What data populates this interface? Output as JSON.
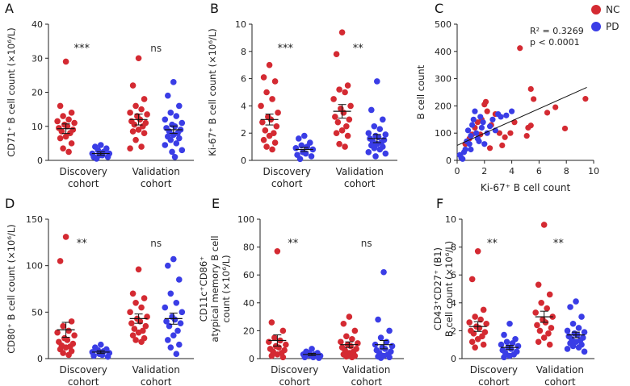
{
  "colors": {
    "nc": "#d42a32",
    "pd": "#3a3de6",
    "axis": "#222222"
  },
  "legend": [
    {
      "key": "nc",
      "label": "NC"
    },
    {
      "key": "pd",
      "label": "PD"
    }
  ],
  "chart_data": [
    {
      "id": "A",
      "letter": "A",
      "type": "scatter",
      "ylabel": "CD71⁺ B cell count (×10⁶/L)",
      "ylim": [
        0,
        40
      ],
      "yticks": [
        "0",
        "10",
        "20",
        "30",
        "40"
      ],
      "groups": [
        "Discovery\ncohort",
        "Validation\ncohort"
      ],
      "significance": [
        "***",
        "ns"
      ],
      "series": [
        {
          "name": "Discovery NC",
          "group": 0,
          "cls": "nc",
          "mean": 9.3,
          "sem": 1.4,
          "values": [
            29,
            16,
            14,
            13,
            12,
            11.5,
            11,
            10.5,
            10,
            9.5,
            9,
            8.5,
            8,
            7,
            6.5,
            5,
            3.5,
            2.5
          ]
        },
        {
          "name": "Discovery PD",
          "group": 0,
          "cls": "pd",
          "mean": 2.0,
          "sem": 0.5,
          "values": [
            4.5,
            4,
            3.5,
            3,
            2.5,
            2,
            2,
            1.5,
            1.5,
            1,
            1,
            0.5
          ]
        },
        {
          "name": "Validation NC",
          "group": 1,
          "cls": "nc",
          "mean": 12,
          "sem": 1.6,
          "values": [
            30,
            22,
            18,
            16,
            15,
            14,
            13.5,
            13,
            12,
            11.5,
            11,
            10.5,
            10,
            9,
            8.5,
            8,
            6,
            4,
            3.5
          ]
        },
        {
          "name": "Validation PD",
          "group": 1,
          "cls": "pd",
          "mean": 9,
          "sem": 1.1,
          "values": [
            23,
            19,
            16,
            14,
            13,
            12,
            11,
            10.5,
            10,
            9.5,
            9,
            8.5,
            8,
            7.5,
            7,
            6.5,
            6,
            5,
            4.5,
            3,
            2.5,
            1
          ]
        }
      ]
    },
    {
      "id": "B",
      "letter": "B",
      "type": "scatter",
      "ylabel": "Ki-67⁺ B cell count (×10⁶/L)",
      "ylim": [
        0,
        10
      ],
      "yticks": [
        "0",
        "2",
        "4",
        "6",
        "8",
        "10"
      ],
      "groups": [
        "Discovery\ncohort",
        "Validation\ncohort"
      ],
      "significance": [
        "***",
        "**"
      ],
      "series": [
        {
          "name": "Discovery NC",
          "group": 0,
          "cls": "nc",
          "mean": 3.0,
          "sem": 0.4,
          "values": [
            7,
            6.1,
            5.8,
            5,
            4.5,
            4,
            3.5,
            3.2,
            3,
            2.8,
            2.5,
            2.2,
            2,
            1.8,
            1.5,
            1.3,
            1,
            0.8
          ]
        },
        {
          "name": "Discovery PD",
          "group": 0,
          "cls": "pd",
          "mean": 0.8,
          "sem": 0.15,
          "values": [
            1.8,
            1.6,
            1.3,
            1.1,
            1,
            0.9,
            0.8,
            0.6,
            0.5,
            0.4,
            0.3,
            0.1
          ]
        },
        {
          "name": "Validation NC",
          "group": 1,
          "cls": "nc",
          "mean": 3.6,
          "sem": 0.5,
          "values": [
            9.4,
            7.8,
            5.5,
            5.2,
            5,
            4.5,
            4,
            3.8,
            3.5,
            3.2,
            3,
            2.8,
            2.5,
            2.2,
            2,
            1.8,
            1.2,
            1
          ]
        },
        {
          "name": "Validation PD",
          "group": 1,
          "cls": "pd",
          "mean": 1.6,
          "sem": 0.3,
          "values": [
            5.8,
            3.7,
            3,
            2.5,
            2.3,
            2,
            1.9,
            1.8,
            1.7,
            1.6,
            1.5,
            1.4,
            1.3,
            1.2,
            1.1,
            1,
            0.9,
            0.8,
            0.6,
            0.5,
            0.3
          ]
        }
      ]
    },
    {
      "id": "C",
      "letter": "C",
      "type": "scatter-correlation",
      "xlabel": "Ki-67⁺ B cell count",
      "ylabel": "B cell count",
      "xlim": [
        0,
        10
      ],
      "ylim": [
        0,
        500
      ],
      "xticks": [
        "0",
        "2",
        "4",
        "6",
        "8",
        "10"
      ],
      "yticks": [
        "0",
        "100",
        "200",
        "300",
        "400",
        "500"
      ],
      "stat_r2": "R² = 0.3269",
      "stat_p": "p < 0.0001",
      "fit_line": {
        "x": [
          0,
          9.5
        ],
        "y": [
          55,
          268
        ]
      },
      "series": [
        {
          "name": "NC",
          "cls": "nc",
          "points": [
            [
              4.6,
              412
            ],
            [
              5.4,
              262
            ],
            [
              5.6,
              225
            ],
            [
              6.6,
              175
            ],
            [
              7.2,
              195
            ],
            [
              7.9,
              117
            ],
            [
              9.4,
              226
            ],
            [
              5.2,
              120
            ],
            [
              5.4,
              128
            ],
            [
              5.1,
              90
            ],
            [
              4.2,
              140
            ],
            [
              3.9,
              100
            ],
            [
              3.5,
              85
            ],
            [
              3.1,
              100
            ],
            [
              2.8,
              170
            ],
            [
              2.5,
              130
            ],
            [
              2.1,
              215
            ],
            [
              2.0,
              205
            ],
            [
              1.8,
              150
            ],
            [
              1.7,
              95
            ],
            [
              1.5,
              140
            ],
            [
              1.3,
              120
            ],
            [
              1.1,
              95
            ],
            [
              0.9,
              80
            ],
            [
              0.6,
              60
            ],
            [
              2.4,
              45
            ],
            [
              3.3,
              55
            ],
            [
              2.2,
              180
            ]
          ]
        },
        {
          "name": "PD",
          "cls": "pd",
          "points": [
            [
              0.2,
              20
            ],
            [
              0.3,
              10
            ],
            [
              0.5,
              30
            ],
            [
              0.6,
              40
            ],
            [
              0.7,
              70
            ],
            [
              0.8,
              110
            ],
            [
              0.9,
              60
            ],
            [
              1.0,
              90
            ],
            [
              1.1,
              130
            ],
            [
              1.2,
              150
            ],
            [
              1.3,
              180
            ],
            [
              1.4,
              100
            ],
            [
              1.5,
              80
            ],
            [
              1.6,
              70
            ],
            [
              1.7,
              160
            ],
            [
              1.8,
              120
            ],
            [
              1.9,
              140
            ],
            [
              2.0,
              60
            ],
            [
              2.2,
              100
            ],
            [
              2.4,
              125
            ],
            [
              2.6,
              150
            ],
            [
              2.8,
              110
            ],
            [
              3.0,
              170
            ],
            [
              3.2,
              160
            ],
            [
              3.6,
              165
            ],
            [
              4.0,
              180
            ],
            [
              0.4,
              5
            ],
            [
              1.0,
              40
            ]
          ]
        }
      ]
    },
    {
      "id": "D",
      "letter": "D",
      "type": "scatter",
      "ylabel": "CD80⁺ B cell count (×10⁶/L)",
      "ylim": [
        0,
        150
      ],
      "yticks": [
        "0",
        "50",
        "100",
        "150"
      ],
      "groups": [
        "Discovery\ncohort",
        "Validation\ncohort"
      ],
      "significance": [
        "**",
        "ns"
      ],
      "series": [
        {
          "name": "Discovery NC",
          "group": 0,
          "cls": "nc",
          "mean": 31,
          "sem": 8,
          "values": [
            131,
            105,
            40,
            35,
            30,
            28,
            25,
            22,
            20,
            18,
            16,
            14,
            13,
            12,
            10,
            8,
            6,
            4
          ]
        },
        {
          "name": "Discovery PD",
          "group": 0,
          "cls": "pd",
          "mean": 7,
          "sem": 1.5,
          "values": [
            15,
            12,
            10,
            9,
            8,
            7,
            6,
            5,
            4,
            3,
            2
          ]
        },
        {
          "name": "Validation NC",
          "group": 1,
          "cls": "nc",
          "mean": 43,
          "sem": 5,
          "values": [
            96,
            70,
            65,
            60,
            55,
            50,
            45,
            43,
            40,
            38,
            35,
            32,
            30,
            28,
            25,
            22,
            20,
            18
          ]
        },
        {
          "name": "Validation PD",
          "group": 1,
          "cls": "pd",
          "mean": 43,
          "sem": 6,
          "values": [
            107,
            100,
            85,
            70,
            60,
            55,
            50,
            45,
            42,
            40,
            38,
            35,
            30,
            25,
            20,
            15,
            12,
            5
          ]
        }
      ]
    },
    {
      "id": "E",
      "letter": "E",
      "type": "scatter",
      "ylabel_lines": [
        "CD11c⁺CD86⁺",
        "atypical memory B cell",
        "count (×10⁶/L)"
      ],
      "ylim": [
        0,
        100
      ],
      "yticks": [
        "0",
        "20",
        "40",
        "60",
        "80",
        "100"
      ],
      "groups": [
        "Discovery\ncohort",
        "Validation\ncohort"
      ],
      "significance": [
        "**",
        "ns"
      ],
      "series": [
        {
          "name": "Discovery NC",
          "group": 0,
          "cls": "nc",
          "mean": 13,
          "sem": 4,
          "values": [
            77,
            26,
            20,
            15,
            13,
            12,
            10,
            9,
            8,
            7,
            6,
            5,
            4,
            3,
            2,
            1
          ]
        },
        {
          "name": "Discovery PD",
          "group": 0,
          "cls": "pd",
          "mean": 3,
          "sem": 0.8,
          "values": [
            7,
            5,
            4,
            4,
            3,
            3,
            2,
            2,
            1,
            1,
            0.5
          ]
        },
        {
          "name": "Validation NC",
          "group": 1,
          "cls": "nc",
          "mean": 10,
          "sem": 2,
          "values": [
            30,
            25,
            20,
            16,
            14,
            12,
            11,
            10,
            9,
            8,
            7,
            6,
            5,
            4,
            3,
            2,
            1.5,
            1
          ]
        },
        {
          "name": "Validation PD",
          "group": 1,
          "cls": "pd",
          "mean": 10,
          "sem": 3,
          "values": [
            62,
            28,
            20,
            15,
            12,
            10,
            9,
            8,
            7,
            6,
            5,
            4,
            3,
            2,
            1.5,
            1,
            0.5
          ]
        }
      ]
    },
    {
      "id": "F",
      "letter": "F",
      "type": "scatter",
      "ylabel_lines": [
        "CD43⁺CD27⁺ (B1)",
        "B cell count (×10⁶/L)"
      ],
      "ylim": [
        0,
        10
      ],
      "yticks": [
        "0",
        "2",
        "4",
        "6",
        "8",
        "10"
      ],
      "groups": [
        "Discovery\ncohort",
        "Validation\ncohort"
      ],
      "significance": [
        "**",
        "**"
      ],
      "series": [
        {
          "name": "Discovery NC",
          "group": 0,
          "cls": "nc",
          "mean": 2.3,
          "sem": 0.35,
          "values": [
            7.7,
            5.7,
            3.5,
            3,
            2.8,
            2.6,
            2.5,
            2.3,
            2.2,
            2,
            1.9,
            1.8,
            1.6,
            1.4,
            1.2,
            1,
            0.8
          ]
        },
        {
          "name": "Discovery PD",
          "group": 0,
          "cls": "pd",
          "mean": 0.8,
          "sem": 0.15,
          "values": [
            2.5,
            1.7,
            1.4,
            1.2,
            1.1,
            1,
            0.9,
            0.8,
            0.7,
            0.6,
            0.5,
            0.4,
            0.3,
            0.2,
            0.1
          ]
        },
        {
          "name": "Validation NC",
          "group": 1,
          "cls": "nc",
          "mean": 3.0,
          "sem": 0.4,
          "values": [
            9.6,
            5.3,
            4.6,
            4,
            3.6,
            3.3,
            3,
            2.8,
            2.6,
            2.4,
            2.2,
            2,
            1.8,
            1.5,
            1.2,
            1
          ]
        },
        {
          "name": "Validation PD",
          "group": 1,
          "cls": "pd",
          "mean": 1.7,
          "sem": 0.2,
          "values": [
            4.1,
            3.7,
            3,
            2.5,
            2.2,
            2,
            1.9,
            1.8,
            1.7,
            1.6,
            1.5,
            1.4,
            1.3,
            1.2,
            1.1,
            1,
            0.9,
            0.8,
            0.7,
            0.5
          ]
        }
      ]
    }
  ]
}
